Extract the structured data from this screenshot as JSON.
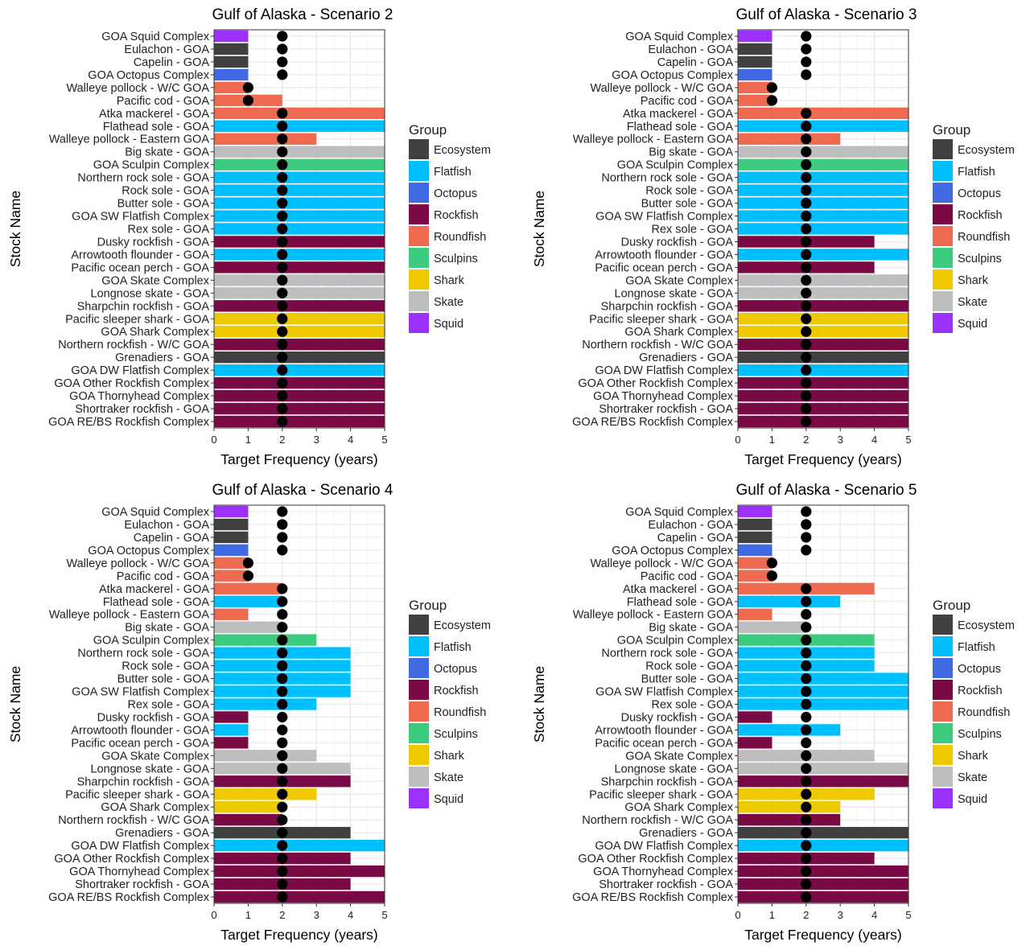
{
  "legend_title": "Group",
  "group_colors": {
    "Ecosystem": "#404040",
    "Flatfish": "#00BFFF",
    "Octopus": "#4169E1",
    "Rockfish": "#7A0A45",
    "Roundfish": "#EE6A50",
    "Sculpins": "#3CCB7F",
    "Shark": "#EEC900",
    "Skate": "#BEBEBE",
    "Squid": "#9B30FF"
  },
  "chart_data": [
    {
      "type": "bar",
      "orientation": "horizontal",
      "title": "Gulf of Alaska - Scenario 2",
      "xlabel": "Target Frequency (years)",
      "ylabel": "Stock Name",
      "xlim": [
        0,
        5
      ],
      "xticks": [
        0,
        1,
        2,
        3,
        4,
        5
      ],
      "grid": true,
      "legend_position": "right",
      "categories": [
        "GOA Squid Complex",
        "Eulachon - GOA",
        "Capelin - GOA",
        "GOA Octopus Complex",
        "Walleye pollock - W/C GOA",
        "Pacific cod - GOA",
        "Atka mackerel - GOA",
        "Flathead sole - GOA",
        "Walleye pollock - Eastern GOA",
        "Big skate - GOA",
        "GOA Sculpin Complex",
        "Northern rock sole - GOA",
        "Rock sole - GOA",
        "Butter sole - GOA",
        "GOA SW Flatfish Complex",
        "Rex sole - GOA",
        "Dusky rockfish - GOA",
        "Arrowtooth flounder - GOA",
        "Pacific ocean perch - GOA",
        "GOA Skate Complex",
        "Longnose skate - GOA",
        "Sharpchin rockfish - GOA",
        "Pacific sleeper shark - GOA",
        "GOA Shark Complex",
        "Northern rockfish - W/C GOA",
        "Grenadiers - GOA",
        "GOA DW Flatfish Complex",
        "GOA Other Rockfish Complex",
        "GOA Thornyhead Complex",
        "Shortraker rockfish - GOA",
        "GOA RE/BS Rockfish Complex"
      ],
      "groups": [
        "Squid",
        "Ecosystem",
        "Ecosystem",
        "Octopus",
        "Roundfish",
        "Roundfish",
        "Roundfish",
        "Flatfish",
        "Roundfish",
        "Skate",
        "Sculpins",
        "Flatfish",
        "Flatfish",
        "Flatfish",
        "Flatfish",
        "Flatfish",
        "Rockfish",
        "Flatfish",
        "Rockfish",
        "Skate",
        "Skate",
        "Rockfish",
        "Shark",
        "Shark",
        "Rockfish",
        "Ecosystem",
        "Flatfish",
        "Rockfish",
        "Rockfish",
        "Rockfish",
        "Rockfish"
      ],
      "values": [
        1,
        1,
        1,
        1,
        1,
        2,
        5,
        5,
        3,
        5,
        5,
        5,
        5,
        5,
        5,
        5,
        5,
        5,
        5,
        5,
        5,
        5,
        5,
        5,
        5,
        5,
        5,
        5,
        5,
        5,
        5
      ],
      "points": [
        2,
        2,
        2,
        2,
        1,
        1,
        2,
        2,
        2,
        2,
        2,
        2,
        2,
        2,
        2,
        2,
        2,
        2,
        2,
        2,
        2,
        2,
        2,
        2,
        2,
        2,
        2,
        2,
        2,
        2,
        2
      ]
    },
    {
      "type": "bar",
      "orientation": "horizontal",
      "title": "Gulf of Alaska - Scenario 3",
      "xlabel": "Target Frequency (years)",
      "ylabel": "Stock Name",
      "xlim": [
        0,
        5
      ],
      "xticks": [
        0,
        1,
        2,
        3,
        4,
        5
      ],
      "grid": true,
      "legend_position": "right",
      "categories": [
        "GOA Squid Complex",
        "Eulachon - GOA",
        "Capelin - GOA",
        "GOA Octopus Complex",
        "Walleye pollock - W/C GOA",
        "Pacific cod - GOA",
        "Atka mackerel - GOA",
        "Flathead sole - GOA",
        "Walleye pollock - Eastern GOA",
        "Big skate - GOA",
        "GOA Sculpin Complex",
        "Northern rock sole - GOA",
        "Rock sole - GOA",
        "Butter sole - GOA",
        "GOA SW Flatfish Complex",
        "Rex sole - GOA",
        "Dusky rockfish - GOA",
        "Arrowtooth flounder - GOA",
        "Pacific ocean perch - GOA",
        "GOA Skate Complex",
        "Longnose skate - GOA",
        "Sharpchin rockfish - GOA",
        "Pacific sleeper shark - GOA",
        "GOA Shark Complex",
        "Northern rockfish - W/C GOA",
        "Grenadiers - GOA",
        "GOA DW Flatfish Complex",
        "GOA Other Rockfish Complex",
        "GOA Thornyhead Complex",
        "Shortraker rockfish - GOA",
        "GOA RE/BS Rockfish Complex"
      ],
      "groups": [
        "Squid",
        "Ecosystem",
        "Ecosystem",
        "Octopus",
        "Roundfish",
        "Roundfish",
        "Roundfish",
        "Flatfish",
        "Roundfish",
        "Skate",
        "Sculpins",
        "Flatfish",
        "Flatfish",
        "Flatfish",
        "Flatfish",
        "Flatfish",
        "Rockfish",
        "Flatfish",
        "Rockfish",
        "Skate",
        "Skate",
        "Rockfish",
        "Shark",
        "Shark",
        "Rockfish",
        "Ecosystem",
        "Flatfish",
        "Rockfish",
        "Rockfish",
        "Rockfish",
        "Rockfish"
      ],
      "values": [
        1,
        1,
        1,
        1,
        1,
        1,
        5,
        5,
        3,
        5,
        5,
        5,
        5,
        5,
        5,
        5,
        4,
        5,
        4,
        5,
        5,
        5,
        5,
        5,
        5,
        5,
        5,
        5,
        5,
        5,
        5
      ],
      "points": [
        2,
        2,
        2,
        2,
        1,
        1,
        2,
        2,
        2,
        2,
        2,
        2,
        2,
        2,
        2,
        2,
        2,
        2,
        2,
        2,
        2,
        2,
        2,
        2,
        2,
        2,
        2,
        2,
        2,
        2,
        2
      ]
    },
    {
      "type": "bar",
      "orientation": "horizontal",
      "title": "Gulf of Alaska - Scenario 4",
      "xlabel": "Target Frequency (years)",
      "ylabel": "Stock Name",
      "xlim": [
        0,
        5
      ],
      "xticks": [
        0,
        1,
        2,
        3,
        4,
        5
      ],
      "grid": true,
      "legend_position": "right",
      "categories": [
        "GOA Squid Complex",
        "Eulachon - GOA",
        "Capelin - GOA",
        "GOA Octopus Complex",
        "Walleye pollock - W/C GOA",
        "Pacific cod - GOA",
        "Atka mackerel - GOA",
        "Flathead sole - GOA",
        "Walleye pollock - Eastern GOA",
        "Big skate - GOA",
        "GOA Sculpin Complex",
        "Northern rock sole - GOA",
        "Rock sole - GOA",
        "Butter sole - GOA",
        "GOA SW Flatfish Complex",
        "Rex sole - GOA",
        "Dusky rockfish - GOA",
        "Arrowtooth flounder - GOA",
        "Pacific ocean perch - GOA",
        "GOA Skate Complex",
        "Longnose skate - GOA",
        "Sharpchin rockfish - GOA",
        "Pacific sleeper shark - GOA",
        "GOA Shark Complex",
        "Northern rockfish - W/C GOA",
        "Grenadiers - GOA",
        "GOA DW Flatfish Complex",
        "GOA Other Rockfish Complex",
        "GOA Thornyhead Complex",
        "Shortraker rockfish - GOA",
        "GOA RE/BS Rockfish Complex"
      ],
      "groups": [
        "Squid",
        "Ecosystem",
        "Ecosystem",
        "Octopus",
        "Roundfish",
        "Roundfish",
        "Roundfish",
        "Flatfish",
        "Roundfish",
        "Skate",
        "Sculpins",
        "Flatfish",
        "Flatfish",
        "Flatfish",
        "Flatfish",
        "Flatfish",
        "Rockfish",
        "Flatfish",
        "Rockfish",
        "Skate",
        "Skate",
        "Rockfish",
        "Shark",
        "Shark",
        "Rockfish",
        "Ecosystem",
        "Flatfish",
        "Rockfish",
        "Rockfish",
        "Rockfish",
        "Rockfish"
      ],
      "values": [
        1,
        1,
        1,
        1,
        1,
        1,
        2,
        2,
        1,
        2,
        3,
        4,
        4,
        4,
        4,
        3,
        1,
        1,
        1,
        3,
        4,
        4,
        3,
        2,
        2,
        4,
        5,
        4,
        5,
        4,
        5
      ],
      "points": [
        2,
        2,
        2,
        2,
        1,
        1,
        2,
        2,
        2,
        2,
        2,
        2,
        2,
        2,
        2,
        2,
        2,
        2,
        2,
        2,
        2,
        2,
        2,
        2,
        2,
        2,
        2,
        2,
        2,
        2,
        2
      ]
    },
    {
      "type": "bar",
      "orientation": "horizontal",
      "title": "Gulf of Alaska - Scenario 5",
      "xlabel": "Target Frequency (years)",
      "ylabel": "Stock Name",
      "xlim": [
        0,
        5
      ],
      "xticks": [
        0,
        1,
        2,
        3,
        4,
        5
      ],
      "grid": true,
      "legend_position": "right",
      "categories": [
        "GOA Squid Complex",
        "Eulachon - GOA",
        "Capelin - GOA",
        "GOA Octopus Complex",
        "Walleye pollock - W/C GOA",
        "Pacific cod - GOA",
        "Atka mackerel - GOA",
        "Flathead sole - GOA",
        "Walleye pollock - Eastern GOA",
        "Big skate - GOA",
        "GOA Sculpin Complex",
        "Northern rock sole - GOA",
        "Rock sole - GOA",
        "Butter sole - GOA",
        "GOA SW Flatfish Complex",
        "Rex sole - GOA",
        "Dusky rockfish - GOA",
        "Arrowtooth flounder - GOA",
        "Pacific ocean perch - GOA",
        "GOA Skate Complex",
        "Longnose skate - GOA",
        "Sharpchin rockfish - GOA",
        "Pacific sleeper shark - GOA",
        "GOA Shark Complex",
        "Northern rockfish - W/C GOA",
        "Grenadiers - GOA",
        "GOA DW Flatfish Complex",
        "GOA Other Rockfish Complex",
        "GOA Thornyhead Complex",
        "Shortraker rockfish - GOA",
        "GOA RE/BS Rockfish Complex"
      ],
      "groups": [
        "Squid",
        "Ecosystem",
        "Ecosystem",
        "Octopus",
        "Roundfish",
        "Roundfish",
        "Roundfish",
        "Flatfish",
        "Roundfish",
        "Skate",
        "Sculpins",
        "Flatfish",
        "Flatfish",
        "Flatfish",
        "Flatfish",
        "Flatfish",
        "Rockfish",
        "Flatfish",
        "Rockfish",
        "Skate",
        "Skate",
        "Rockfish",
        "Shark",
        "Shark",
        "Rockfish",
        "Ecosystem",
        "Flatfish",
        "Rockfish",
        "Rockfish",
        "Rockfish",
        "Rockfish"
      ],
      "values": [
        1,
        1,
        1,
        1,
        1,
        1,
        4,
        3,
        1,
        2,
        4,
        4,
        4,
        5,
        5,
        5,
        1,
        3,
        1,
        4,
        5,
        5,
        4,
        3,
        3,
        5,
        5,
        4,
        5,
        5,
        5
      ],
      "points": [
        2,
        2,
        2,
        2,
        1,
        1,
        2,
        2,
        2,
        2,
        2,
        2,
        2,
        2,
        2,
        2,
        2,
        2,
        2,
        2,
        2,
        2,
        2,
        2,
        2,
        2,
        2,
        2,
        2,
        2,
        2
      ]
    }
  ]
}
